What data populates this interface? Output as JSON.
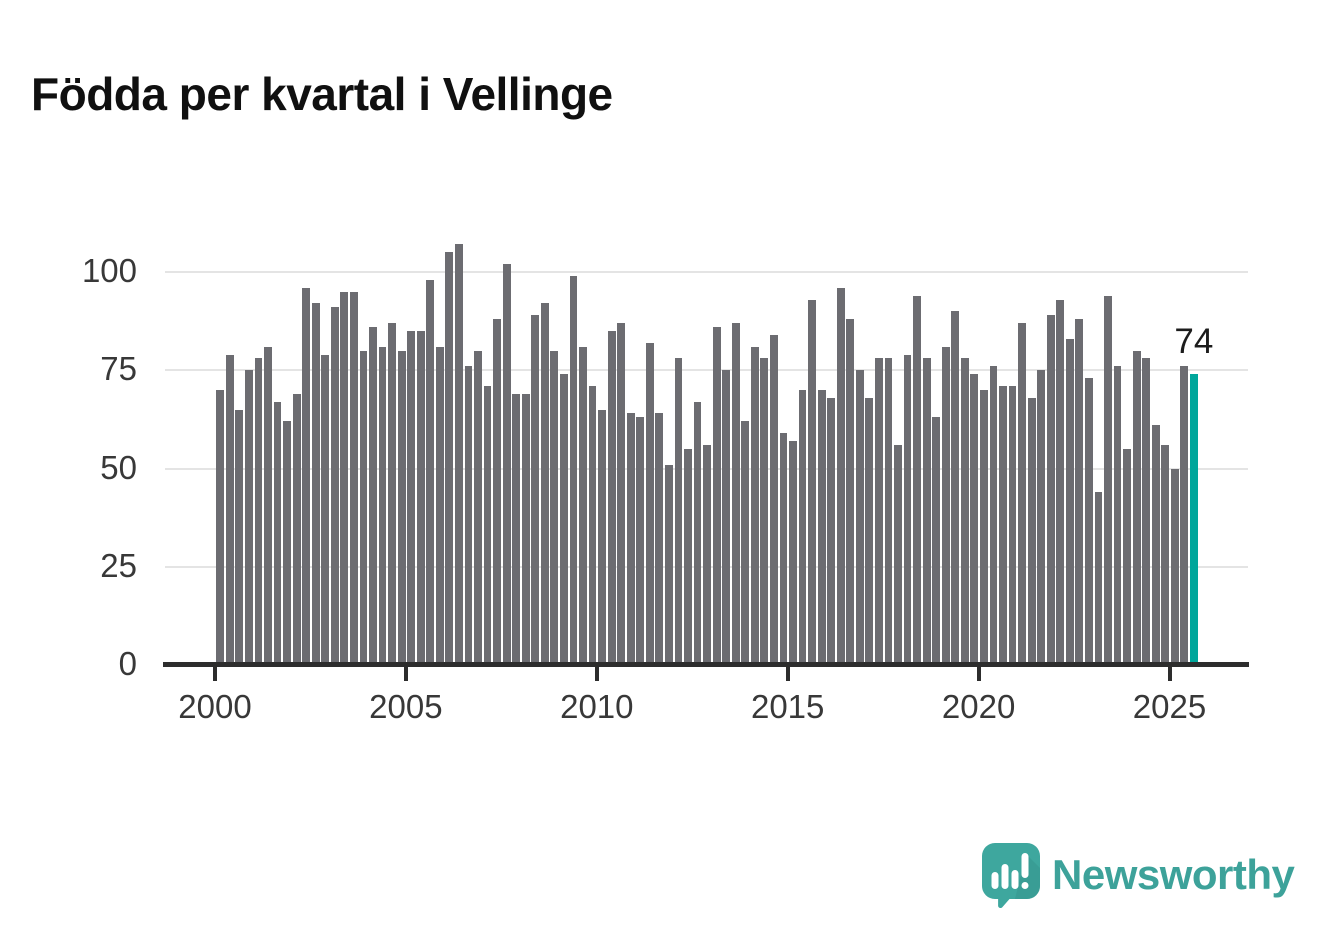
{
  "title": "Födda per kvartal i Vellinge",
  "annotation": {
    "label": "74"
  },
  "logo": {
    "text": "Newsworthy"
  },
  "colors": {
    "bar": "#6c6c71",
    "highlight": "#00a69b",
    "axis": "#2d2d2d",
    "gridline": "#e4e4e4",
    "tick_label": "#383838",
    "logo_teal": "#3da29a"
  },
  "chart_data": {
    "type": "bar",
    "title": "Födda per kvartal i Vellinge",
    "xlabel": "",
    "ylabel": "",
    "yticks": [
      0,
      25,
      50,
      75,
      100
    ],
    "xticks": [
      2000,
      2005,
      2010,
      2015,
      2020,
      2025
    ],
    "ylim": [
      0,
      110
    ],
    "grid": "horizontal",
    "legend": "none",
    "highlight": {
      "index": 102,
      "x": "2025 Q3",
      "value": 74,
      "label": "74"
    },
    "x": [
      "2000 Q1",
      "2000 Q2",
      "2000 Q3",
      "2000 Q4",
      "2001 Q1",
      "2001 Q2",
      "2001 Q3",
      "2001 Q4",
      "2002 Q1",
      "2002 Q2",
      "2002 Q3",
      "2002 Q4",
      "2003 Q1",
      "2003 Q2",
      "2003 Q3",
      "2003 Q4",
      "2004 Q1",
      "2004 Q2",
      "2004 Q3",
      "2004 Q4",
      "2005 Q1",
      "2005 Q2",
      "2005 Q3",
      "2005 Q4",
      "2006 Q1",
      "2006 Q2",
      "2006 Q3",
      "2006 Q4",
      "2007 Q1",
      "2007 Q2",
      "2007 Q3",
      "2007 Q4",
      "2008 Q1",
      "2008 Q2",
      "2008 Q3",
      "2008 Q4",
      "2009 Q1",
      "2009 Q2",
      "2009 Q3",
      "2009 Q4",
      "2010 Q1",
      "2010 Q2",
      "2010 Q3",
      "2010 Q4",
      "2011 Q1",
      "2011 Q2",
      "2011 Q3",
      "2011 Q4",
      "2012 Q1",
      "2012 Q2",
      "2012 Q3",
      "2012 Q4",
      "2013 Q1",
      "2013 Q2",
      "2013 Q3",
      "2013 Q4",
      "2014 Q1",
      "2014 Q2",
      "2014 Q3",
      "2014 Q4",
      "2015 Q1",
      "2015 Q2",
      "2015 Q3",
      "2015 Q4",
      "2016 Q1",
      "2016 Q2",
      "2016 Q3",
      "2016 Q4",
      "2017 Q1",
      "2017 Q2",
      "2017 Q3",
      "2017 Q4",
      "2018 Q1",
      "2018 Q2",
      "2018 Q3",
      "2018 Q4",
      "2019 Q1",
      "2019 Q2",
      "2019 Q3",
      "2019 Q4",
      "2020 Q1",
      "2020 Q2",
      "2020 Q3",
      "2020 Q4",
      "2021 Q1",
      "2021 Q2",
      "2021 Q3",
      "2021 Q4",
      "2022 Q1",
      "2022 Q2",
      "2022 Q3",
      "2022 Q4",
      "2023 Q1",
      "2023 Q2",
      "2023 Q3",
      "2023 Q4",
      "2024 Q1",
      "2024 Q2",
      "2024 Q3",
      "2024 Q4",
      "2025 Q1",
      "2025 Q2",
      "2025 Q3"
    ],
    "values": [
      70,
      79,
      65,
      75,
      78,
      81,
      67,
      62,
      69,
      96,
      92,
      79,
      91,
      95,
      95,
      80,
      86,
      81,
      87,
      80,
      85,
      85,
      98,
      81,
      105,
      107,
      76,
      80,
      71,
      88,
      102,
      69,
      69,
      89,
      92,
      80,
      74,
      99,
      81,
      71,
      65,
      85,
      87,
      64,
      63,
      82,
      64,
      51,
      78,
      55,
      67,
      56,
      86,
      75,
      87,
      62,
      81,
      78,
      84,
      59,
      57,
      70,
      93,
      70,
      68,
      96,
      88,
      75,
      68,
      78,
      78,
      56,
      79,
      94,
      78,
      63,
      81,
      90,
      78,
      74,
      70,
      76,
      71,
      71,
      87,
      68,
      75,
      89,
      93,
      83,
      88,
      73,
      44,
      94,
      76,
      55,
      80,
      78,
      61,
      56,
      50,
      76,
      74
    ]
  }
}
